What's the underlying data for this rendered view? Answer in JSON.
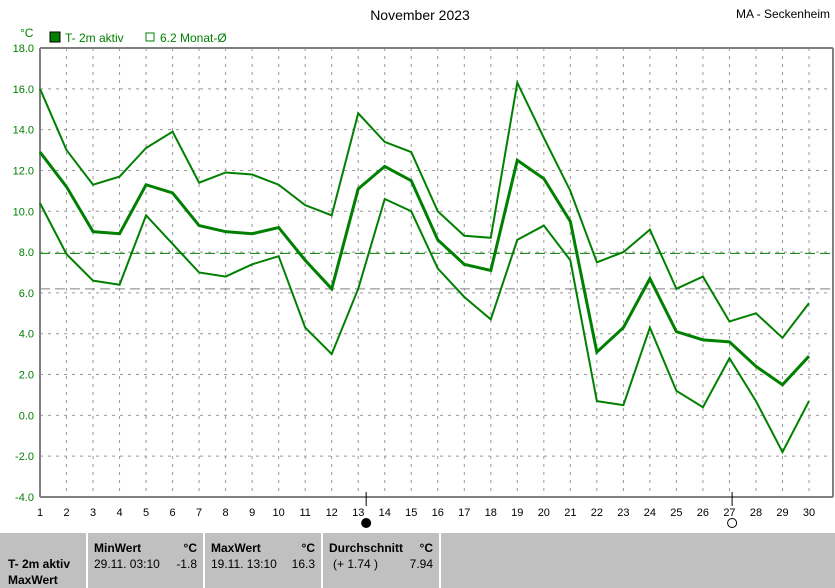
{
  "chart_data": {
    "type": "line",
    "title": "November 2023",
    "station": "MA - Seckenheim",
    "ylabel": "°C",
    "ylim": [
      -4,
      18
    ],
    "yticks": [
      "18.0",
      "16.0",
      "14.0",
      "12.0",
      "10.0",
      "8.0",
      "6.0",
      "4.0",
      "2.0",
      "0.0",
      "-2.0",
      "-4.0"
    ],
    "x": [
      1,
      2,
      3,
      4,
      5,
      6,
      7,
      8,
      9,
      10,
      11,
      12,
      13,
      14,
      15,
      16,
      17,
      18,
      19,
      20,
      21,
      22,
      23,
      24,
      25,
      26,
      27,
      28,
      29,
      30
    ],
    "grid": true,
    "legend": [
      {
        "label": "T- 2m aktiv",
        "marker": "filled-square"
      },
      {
        "label": "6.2 Monat-Ø",
        "marker": "open-square"
      }
    ],
    "series": [
      {
        "role": "max",
        "values": [
          16.0,
          13.0,
          11.3,
          11.7,
          13.1,
          13.9,
          11.4,
          11.9,
          11.8,
          11.3,
          10.3,
          9.8,
          14.8,
          13.4,
          12.9,
          10.0,
          8.8,
          8.7,
          16.3,
          13.6,
          11.0,
          7.5,
          8.0,
          9.1,
          6.2,
          6.8,
          4.6,
          5.0,
          3.8,
          5.5
        ]
      },
      {
        "role": "mean",
        "values": [
          12.9,
          11.2,
          9.0,
          8.9,
          11.3,
          10.9,
          9.3,
          9.0,
          8.9,
          9.2,
          7.6,
          6.2,
          11.1,
          12.2,
          11.5,
          8.6,
          7.4,
          7.1,
          12.5,
          11.6,
          9.5,
          3.1,
          4.3,
          6.7,
          4.1,
          3.7,
          3.6,
          2.4,
          1.5,
          2.9
        ]
      },
      {
        "role": "min",
        "values": [
          10.4,
          7.9,
          6.6,
          6.4,
          9.8,
          8.4,
          7.0,
          6.8,
          7.4,
          7.8,
          4.3,
          3.0,
          6.2,
          10.6,
          10.0,
          7.2,
          5.8,
          4.7,
          8.6,
          9.3,
          7.6,
          0.7,
          0.5,
          4.3,
          1.2,
          0.4,
          2.8,
          0.7,
          -1.8,
          0.7
        ]
      }
    ],
    "reference_lines": [
      {
        "value": 7.94,
        "color": "#008000"
      },
      {
        "value": 6.2,
        "color": "#808080"
      }
    ],
    "moon_markers": [
      {
        "day": 13.3,
        "phase": "new"
      },
      {
        "day": 27.1,
        "phase": "full"
      }
    ],
    "line_color": "#008000"
  },
  "panel": {
    "series_label": "T- 2m aktiv",
    "row_label": "MaxWert",
    "min": {
      "title": "MinWert",
      "unit": "°C",
      "date": "29.11.  03:10",
      "value": "-1.8"
    },
    "max": {
      "title": "MaxWert",
      "unit": "°C",
      "date": "19.11.  13:10",
      "value": "16.3"
    },
    "avg": {
      "title": "Durchschnitt",
      "unit": "°C",
      "diff": "(+ 1.74 )",
      "value": "7.94"
    }
  }
}
